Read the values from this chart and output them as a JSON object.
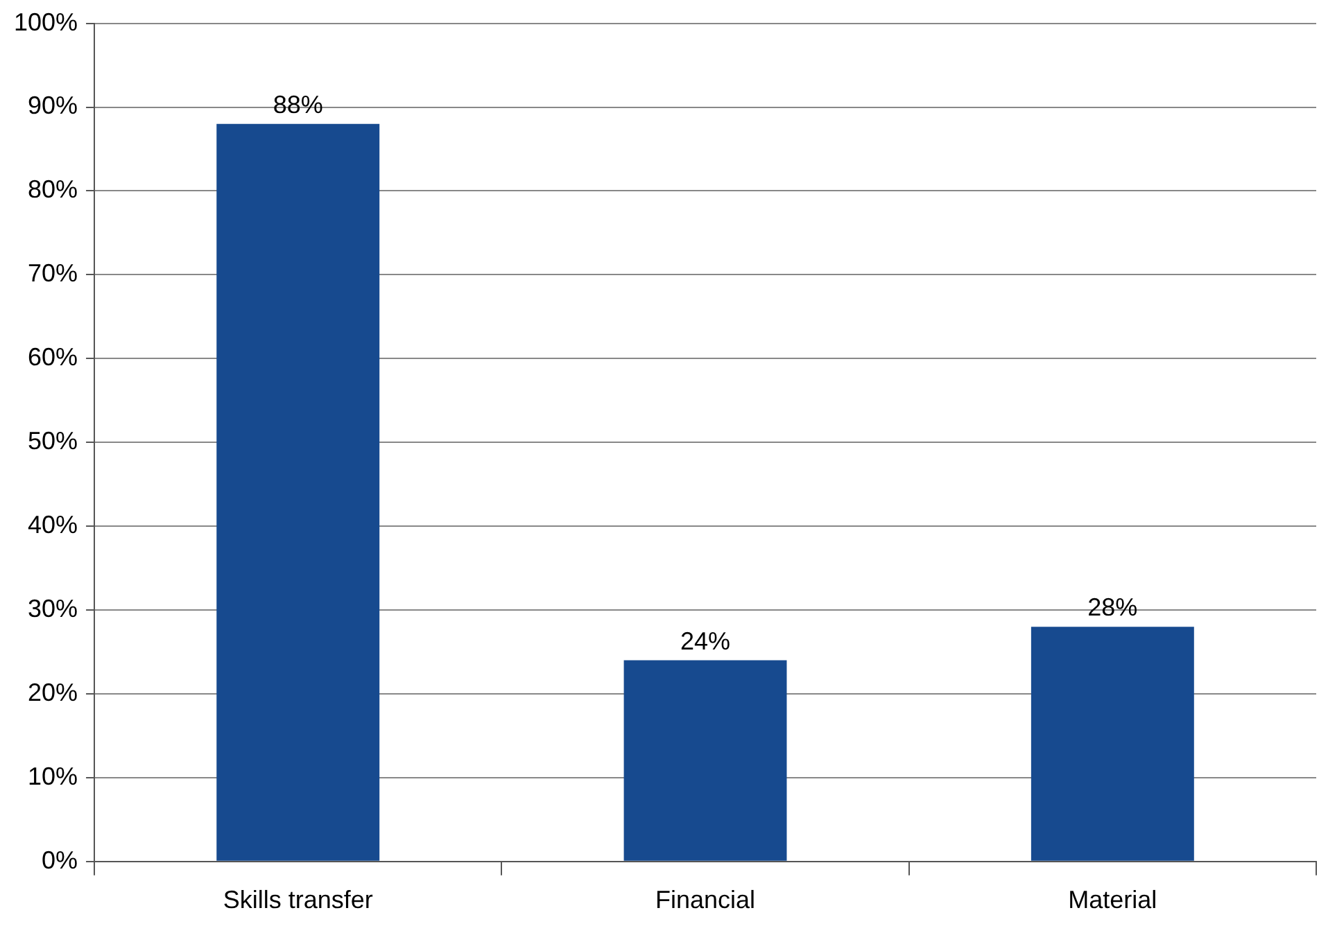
{
  "chart_data": {
    "type": "bar",
    "categories": [
      "Skills transfer",
      "Financial",
      "Material"
    ],
    "values": [
      88,
      24,
      28
    ],
    "color": "#174a8f",
    "value_labels": [
      "88%",
      "24%",
      "28%"
    ],
    "ylim": [
      0,
      100
    ],
    "yticks": [
      {
        "value": 0,
        "label": "0%"
      },
      {
        "value": 10,
        "label": "10%"
      },
      {
        "value": 20,
        "label": "20%"
      },
      {
        "value": 30,
        "label": "30%"
      },
      {
        "value": 40,
        "label": "40%"
      },
      {
        "value": 50,
        "label": "50%"
      },
      {
        "value": 60,
        "label": "60%"
      },
      {
        "value": 70,
        "label": "70%"
      },
      {
        "value": 80,
        "label": "80%"
      },
      {
        "value": 90,
        "label": "90%"
      },
      {
        "value": 100,
        "label": "100%"
      }
    ],
    "grid": "y",
    "legend": false
  }
}
